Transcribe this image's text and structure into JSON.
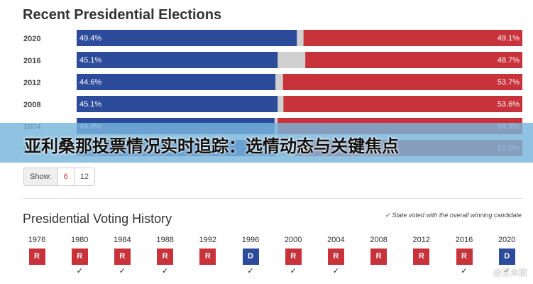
{
  "title": "Recent Presidential Elections",
  "banner": "亚利桑那投票情况实时追踪：选情动态与关键焦点",
  "show": {
    "label": "Show:",
    "options": [
      "6",
      "12"
    ],
    "selected": "6"
  },
  "history_title": "Presidential Voting History",
  "history_note": "✓ State voted with the overall winning candidate",
  "watermark": "@王木放",
  "colors": {
    "dem": "#2d4b9b",
    "rep": "#c8333b",
    "other": "#d0d0d0"
  },
  "chart_data": {
    "type": "bar",
    "title": "Recent Presidential Elections",
    "categories": [
      "2020",
      "2016",
      "2012",
      "2008",
      "2004",
      "2000"
    ],
    "series": [
      {
        "name": "Democrat",
        "values": [
          49.4,
          45.1,
          44.6,
          45.1,
          44.4,
          44.7
        ],
        "labels": [
          "49.4%",
          "45.1%",
          "44.6%",
          "45.1%",
          "44.4%",
          "44.7%"
        ]
      },
      {
        "name": "Republican",
        "values": [
          49.1,
          48.7,
          53.7,
          53.6,
          54.9,
          51.0
        ],
        "labels": [
          "49.1%",
          "48.7%",
          "53.7%",
          "53.6%",
          "54.9%",
          "51.0%"
        ]
      }
    ]
  },
  "history": [
    {
      "year": "1976",
      "party": "R",
      "won": false
    },
    {
      "year": "1980",
      "party": "R",
      "won": true
    },
    {
      "year": "1984",
      "party": "R",
      "won": true
    },
    {
      "year": "1988",
      "party": "R",
      "won": true
    },
    {
      "year": "1992",
      "party": "R",
      "won": false
    },
    {
      "year": "1996",
      "party": "D",
      "won": true
    },
    {
      "year": "2000",
      "party": "R",
      "won": true
    },
    {
      "year": "2004",
      "party": "R",
      "won": true
    },
    {
      "year": "2008",
      "party": "R",
      "won": false
    },
    {
      "year": "2012",
      "party": "R",
      "won": false
    },
    {
      "year": "2016",
      "party": "R",
      "won": true
    },
    {
      "year": "2020",
      "party": "D",
      "won": true
    }
  ]
}
